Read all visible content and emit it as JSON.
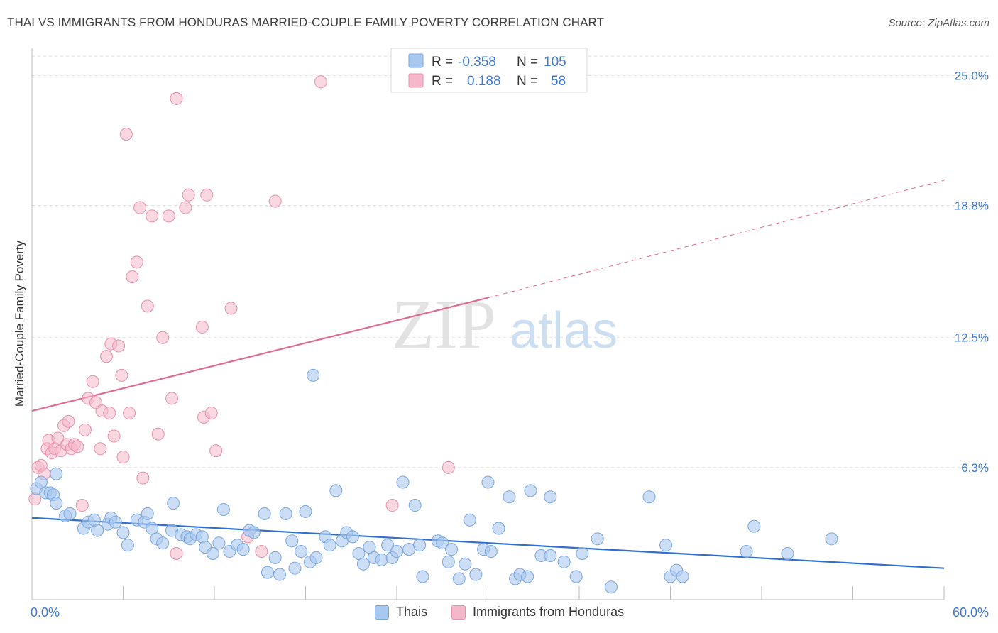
{
  "header": {
    "title": "THAI VS IMMIGRANTS FROM HONDURAS MARRIED-COUPLE FAMILY POVERTY CORRELATION CHART",
    "source": "Source: ZipAtlas.com"
  },
  "watermark": {
    "zip": "ZIP",
    "atlas": "atlas"
  },
  "colors": {
    "thai_fill": "#a8c8f0",
    "thai_stroke": "#7aa6dc",
    "thai_line": "#2f6fcf",
    "honduras_fill": "#f5b8ca",
    "honduras_stroke": "#e890ab",
    "honduras_line": "#e06a90",
    "axis_label": "#3d78cc",
    "grid": "#dddddd"
  },
  "legend_top": {
    "rows": [
      {
        "r_label": "R =",
        "r_value": "-0.358",
        "n_label": "N =",
        "n_value": "105"
      },
      {
        "r_label": "R =",
        "r_value": "0.188",
        "n_label": "N =",
        "n_value": "58"
      }
    ]
  },
  "legend_bottom": {
    "items": [
      "Thais",
      "Immigrants from Honduras"
    ]
  },
  "chart_data": {
    "type": "scatter",
    "xlabel": "",
    "ylabel": "Married-Couple Family Poverty",
    "xlim": [
      0,
      60
    ],
    "ylim": [
      0,
      26.3
    ],
    "x_tick_labels": [
      "0.0%",
      "60.0%"
    ],
    "y_ticks": [
      6.3,
      12.5,
      18.8,
      25.0
    ],
    "y_tick_labels": [
      "6.3%",
      "12.5%",
      "18.8%",
      "25.0%"
    ],
    "grid": "horizontal dashed",
    "legend_placement": "top-center",
    "series": [
      {
        "name": "Thais",
        "R": -0.358,
        "N": 105,
        "trend": {
          "x": [
            0,
            60
          ],
          "y": [
            3.9,
            1.5
          ],
          "style": "solid"
        },
        "points": [
          [
            0.3,
            5.3
          ],
          [
            0.6,
            5.6
          ],
          [
            0.9,
            5.1
          ],
          [
            1.2,
            5.1
          ],
          [
            1.4,
            5.0
          ],
          [
            1.6,
            6.0
          ],
          [
            1.6,
            4.6
          ],
          [
            2.2,
            4.0
          ],
          [
            2.5,
            4.1
          ],
          [
            3.4,
            3.4
          ],
          [
            3.7,
            3.7
          ],
          [
            4.3,
            3.3
          ],
          [
            4.1,
            3.8
          ],
          [
            5.0,
            3.6
          ],
          [
            5.2,
            3.9
          ],
          [
            5.5,
            3.7
          ],
          [
            6.0,
            3.2
          ],
          [
            6.3,
            2.6
          ],
          [
            6.9,
            3.8
          ],
          [
            7.4,
            3.7
          ],
          [
            7.6,
            4.1
          ],
          [
            7.9,
            3.4
          ],
          [
            8.2,
            2.9
          ],
          [
            8.6,
            2.7
          ],
          [
            9.2,
            3.3
          ],
          [
            9.3,
            4.6
          ],
          [
            9.8,
            3.1
          ],
          [
            10.2,
            3.0
          ],
          [
            10.4,
            2.9
          ],
          [
            10.8,
            3.1
          ],
          [
            11.2,
            3.0
          ],
          [
            11.4,
            2.5
          ],
          [
            11.9,
            2.2
          ],
          [
            12.3,
            2.7
          ],
          [
            12.6,
            4.3
          ],
          [
            13.0,
            2.3
          ],
          [
            13.5,
            2.6
          ],
          [
            13.9,
            2.4
          ],
          [
            14.3,
            3.3
          ],
          [
            14.6,
            3.2
          ],
          [
            15.3,
            4.1
          ],
          [
            15.5,
            1.3
          ],
          [
            16.0,
            2.0
          ],
          [
            16.3,
            1.2
          ],
          [
            16.7,
            4.1
          ],
          [
            17.1,
            2.8
          ],
          [
            17.3,
            1.5
          ],
          [
            17.7,
            2.3
          ],
          [
            18.0,
            4.2
          ],
          [
            18.3,
            1.8
          ],
          [
            18.7,
            2.0
          ],
          [
            19.3,
            3.0
          ],
          [
            19.6,
            2.6
          ],
          [
            20.0,
            5.2
          ],
          [
            20.4,
            2.8
          ],
          [
            20.7,
            3.2
          ],
          [
            21.1,
            3.0
          ],
          [
            21.5,
            2.2
          ],
          [
            21.8,
            1.7
          ],
          [
            22.2,
            2.5
          ],
          [
            22.5,
            2.0
          ],
          [
            23.0,
            1.9
          ],
          [
            23.4,
            2.6
          ],
          [
            23.7,
            2.0
          ],
          [
            24.0,
            2.3
          ],
          [
            24.4,
            5.6
          ],
          [
            24.8,
            2.4
          ],
          [
            25.2,
            4.5
          ],
          [
            25.5,
            2.6
          ],
          [
            25.7,
            1.1
          ],
          [
            26.7,
            2.8
          ],
          [
            27.0,
            2.7
          ],
          [
            27.4,
            1.8
          ],
          [
            27.6,
            2.4
          ],
          [
            28.1,
            1.0
          ],
          [
            28.5,
            1.7
          ],
          [
            28.8,
            3.8
          ],
          [
            29.2,
            1.2
          ],
          [
            29.7,
            2.4
          ],
          [
            30.2,
            2.3
          ],
          [
            30.0,
            5.6
          ],
          [
            30.7,
            3.4
          ],
          [
            31.4,
            4.9
          ],
          [
            31.8,
            1.0
          ],
          [
            32.1,
            1.2
          ],
          [
            32.6,
            1.1
          ],
          [
            32.8,
            5.2
          ],
          [
            33.5,
            2.1
          ],
          [
            34.1,
            4.9
          ],
          [
            34.1,
            2.1
          ],
          [
            35.0,
            1.8
          ],
          [
            35.8,
            1.1
          ],
          [
            36.2,
            2.2
          ],
          [
            37.2,
            2.9
          ],
          [
            38.1,
            0.6
          ],
          [
            40.6,
            4.9
          ],
          [
            41.7,
            2.6
          ],
          [
            42.0,
            1.1
          ],
          [
            42.4,
            1.4
          ],
          [
            42.8,
            1.1
          ],
          [
            47.0,
            2.3
          ],
          [
            47.5,
            3.5
          ],
          [
            49.7,
            2.2
          ],
          [
            52.6,
            2.9
          ],
          [
            18.5,
            10.7
          ]
        ]
      },
      {
        "name": "Immigrants from Honduras",
        "R": 0.188,
        "N": 58,
        "trend": {
          "x": [
            0,
            30,
            60
          ],
          "y": [
            9.0,
            14.4,
            20.0
          ],
          "solid_until": 30,
          "style": "solid then dashed"
        },
        "points": [
          [
            0.2,
            4.8
          ],
          [
            0.4,
            6.3
          ],
          [
            0.6,
            6.4
          ],
          [
            0.8,
            6.0
          ],
          [
            1.0,
            7.2
          ],
          [
            1.1,
            7.6
          ],
          [
            1.3,
            7.0
          ],
          [
            1.5,
            7.2
          ],
          [
            1.7,
            7.7
          ],
          [
            1.9,
            7.1
          ],
          [
            2.1,
            8.3
          ],
          [
            2.3,
            7.4
          ],
          [
            2.4,
            8.5
          ],
          [
            2.6,
            7.2
          ],
          [
            2.8,
            7.4
          ],
          [
            3.0,
            7.3
          ],
          [
            3.3,
            4.5
          ],
          [
            3.5,
            8.1
          ],
          [
            3.7,
            9.6
          ],
          [
            4.0,
            10.4
          ],
          [
            4.2,
            9.4
          ],
          [
            4.5,
            7.2
          ],
          [
            4.6,
            9.0
          ],
          [
            4.9,
            11.6
          ],
          [
            5.1,
            8.9
          ],
          [
            5.2,
            12.2
          ],
          [
            5.4,
            7.8
          ],
          [
            5.7,
            12.1
          ],
          [
            5.9,
            10.7
          ],
          [
            6.0,
            6.8
          ],
          [
            6.2,
            22.2
          ],
          [
            6.4,
            8.9
          ],
          [
            6.6,
            15.4
          ],
          [
            6.9,
            16.1
          ],
          [
            7.1,
            18.7
          ],
          [
            7.3,
            5.8
          ],
          [
            7.6,
            14.0
          ],
          [
            7.9,
            18.3
          ],
          [
            8.3,
            7.9
          ],
          [
            8.6,
            12.5
          ],
          [
            9.0,
            18.3
          ],
          [
            9.2,
            9.6
          ],
          [
            9.5,
            23.9
          ],
          [
            9.5,
            2.2
          ],
          [
            10.1,
            18.7
          ],
          [
            10.3,
            19.3
          ],
          [
            11.2,
            13.0
          ],
          [
            11.3,
            8.7
          ],
          [
            11.5,
            19.3
          ],
          [
            11.8,
            8.9
          ],
          [
            12.1,
            7.1
          ],
          [
            13.1,
            13.9
          ],
          [
            14.2,
            3.0
          ],
          [
            15.1,
            2.3
          ],
          [
            16.0,
            19.0
          ],
          [
            19.0,
            24.7
          ],
          [
            23.7,
            4.5
          ],
          [
            27.4,
            6.3
          ]
        ]
      }
    ]
  }
}
